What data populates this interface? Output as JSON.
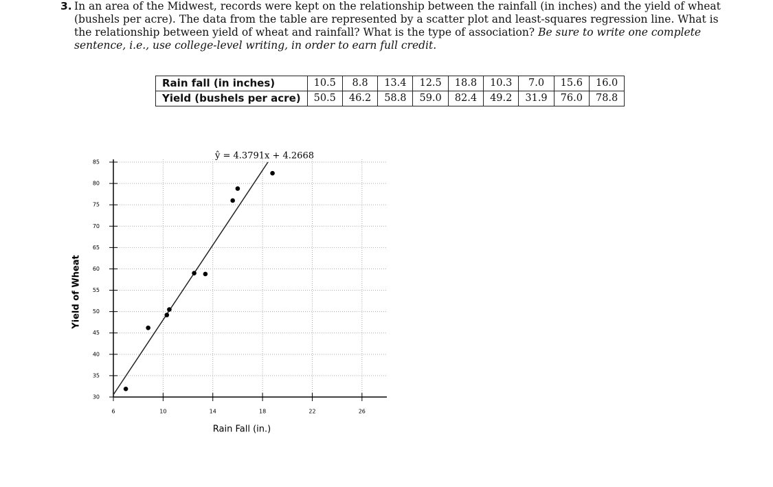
{
  "question": {
    "number": "3.",
    "text": "In an area of the Midwest, records were kept on the relationship between the rainfall (in inches) and the yield of wheat (bushels per acre). The data from the table are represented by a scatter plot and least-squares regression line. What is the relationship between yield of wheat and rainfall? What is the type of association?",
    "instruction": "Be sure to write one complete sentence, i.e., use college-level writing, in order to earn full credit."
  },
  "table": {
    "rows": [
      [
        "Rain fall (in inches)",
        "10.5",
        "8.8",
        "13.4",
        "12.5",
        "18.8",
        "10.3",
        "7.0",
        "15.6",
        "16.0"
      ],
      [
        "Yield (bushels per acre)",
        "50.5",
        "46.2",
        "58.8",
        "59.0",
        "82.4",
        "49.2",
        "31.9",
        "76.0",
        "78.8"
      ]
    ]
  },
  "chart_data": {
    "type": "scatter",
    "x_label": "Rain Fall (in.)",
    "y_label": "Yield of Wheat",
    "x": [
      10.5,
      8.8,
      13.4,
      12.5,
      18.8,
      10.3,
      7.0,
      15.6,
      16.0
    ],
    "values": [
      50.5,
      46.2,
      58.8,
      59.0,
      82.4,
      49.2,
      31.9,
      76.0,
      78.8
    ],
    "color": "#000000",
    "regression": {
      "label": "ŷ = 4.3791x + 4.2668",
      "slope": 4.3791,
      "intercept": 4.2668
    },
    "xlim": [
      6,
      28
    ],
    "ylim": [
      30,
      85
    ],
    "xticks": [
      6,
      10,
      14,
      18,
      22,
      26
    ],
    "yticks": [
      30,
      35,
      40,
      45,
      50,
      55,
      60,
      65,
      70,
      75,
      80,
      85
    ],
    "grid": true
  }
}
